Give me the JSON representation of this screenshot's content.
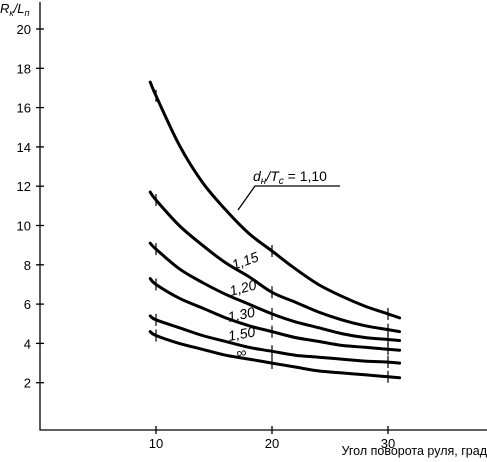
{
  "chart_data": {
    "type": "line",
    "ylabel_main": "R",
    "ylabel_sub1": "к",
    "ylabel_mid": "/L",
    "ylabel_sub2": "п",
    "xlabel": "Угол поворота руля, град",
    "xlim": [
      0,
      33
    ],
    "ylim": [
      0,
      21
    ],
    "xticks": [
      10,
      20,
      30
    ],
    "yticks": [
      2,
      4,
      6,
      8,
      10,
      12,
      14,
      16,
      18,
      20
    ],
    "x": [
      9.5,
      10,
      12,
      14,
      16,
      18,
      20,
      22,
      24,
      26,
      28,
      30,
      31
    ],
    "legend_main": "d",
    "legend_sub1": "н",
    "legend_mid": "/T",
    "legend_sub2": "с",
    "legend_tail": " = 1,10",
    "series": [
      {
        "name": "1,10",
        "values": [
          17.3,
          16.6,
          14.1,
          12.2,
          10.8,
          9.6,
          8.7,
          7.8,
          7.0,
          6.4,
          5.9,
          5.5,
          5.3
        ]
      },
      {
        "name": "1,15",
        "values": [
          11.7,
          11.3,
          10.0,
          9.0,
          8.1,
          7.4,
          6.6,
          6.1,
          5.6,
          5.2,
          4.9,
          4.7,
          4.6
        ]
      },
      {
        "name": "1,20",
        "values": [
          9.1,
          8.8,
          7.8,
          7.1,
          6.5,
          6.0,
          5.5,
          5.1,
          4.8,
          4.5,
          4.3,
          4.2,
          4.15
        ]
      },
      {
        "name": "1,30",
        "values": [
          7.3,
          7.0,
          6.3,
          5.8,
          5.3,
          4.9,
          4.6,
          4.3,
          4.1,
          3.9,
          3.8,
          3.7,
          3.65
        ]
      },
      {
        "name": "1,50",
        "values": [
          5.4,
          5.2,
          4.8,
          4.4,
          4.1,
          3.8,
          3.6,
          3.4,
          3.3,
          3.2,
          3.1,
          3.05,
          3.0
        ]
      },
      {
        "name": "∞",
        "values": [
          4.6,
          4.4,
          4.0,
          3.7,
          3.4,
          3.2,
          3.0,
          2.8,
          2.6,
          2.5,
          2.4,
          2.3,
          2.25
        ]
      }
    ],
    "tick_marks_x": [
      10,
      20,
      30
    ],
    "grid": false
  }
}
